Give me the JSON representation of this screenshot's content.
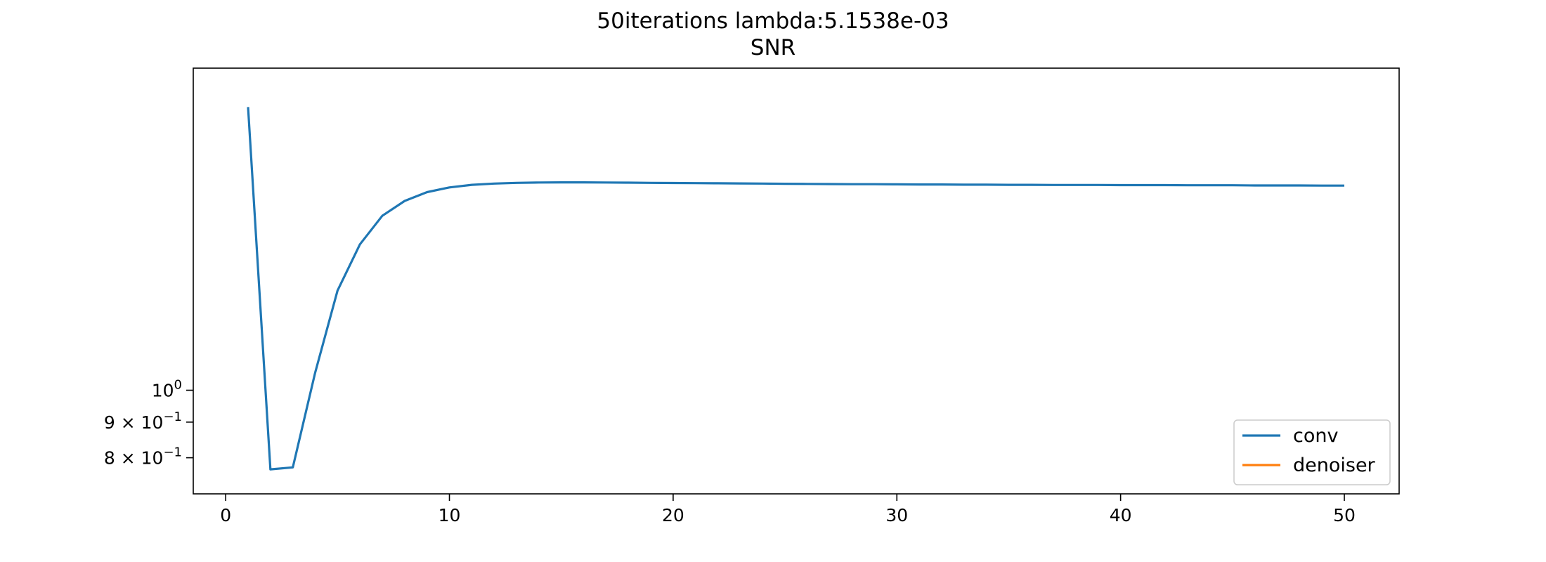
{
  "chart_data": {
    "type": "line",
    "title": "50iterations lambda:5.1538e-03",
    "subtitle": "SNR",
    "xlabel": "",
    "ylabel": "",
    "xlim": [
      -1.45,
      52.45
    ],
    "ylim": [
      0.71,
      2.9
    ],
    "yscale": "log",
    "grid": false,
    "legend_position": "lower-right",
    "x_ticks": [
      {
        "value": 0,
        "label": "0"
      },
      {
        "value": 10,
        "label": "10"
      },
      {
        "value": 20,
        "label": "20"
      },
      {
        "value": 30,
        "label": "30"
      },
      {
        "value": 40,
        "label": "40"
      },
      {
        "value": 50,
        "label": "50"
      }
    ],
    "y_ticks": [
      {
        "value": 1.0,
        "base": "10",
        "exp": "0"
      },
      {
        "value": 0.9,
        "base": "9 × 10",
        "exp": "−1"
      },
      {
        "value": 0.8,
        "base": "8 × 10",
        "exp": "−1"
      }
    ],
    "series": [
      {
        "name": "conv",
        "color": "#1f77b4",
        "x": [
          1,
          2,
          3,
          4,
          5,
          6,
          7,
          8,
          9,
          10,
          11,
          12,
          13,
          14,
          15,
          16,
          17,
          18,
          19,
          20,
          21,
          22,
          23,
          24,
          25,
          26,
          27,
          28,
          29,
          30,
          31,
          32,
          33,
          34,
          35,
          36,
          37,
          38,
          39,
          40,
          41,
          42,
          43,
          44,
          45,
          46,
          47,
          48,
          49,
          50
        ],
        "y": [
          2.55,
          0.77,
          0.775,
          1.06,
          1.39,
          1.62,
          1.78,
          1.87,
          1.925,
          1.955,
          1.972,
          1.98,
          1.985,
          1.987,
          1.988,
          1.988,
          1.987,
          1.986,
          1.985,
          1.984,
          1.983,
          1.982,
          1.981,
          1.98,
          1.979,
          1.978,
          1.977,
          1.976,
          1.976,
          1.975,
          1.974,
          1.974,
          1.973,
          1.973,
          1.972,
          1.972,
          1.971,
          1.971,
          1.971,
          1.97,
          1.97,
          1.97,
          1.969,
          1.969,
          1.969,
          1.968,
          1.968,
          1.968,
          1.967,
          1.967
        ]
      },
      {
        "name": "denoiser",
        "color": "#ff7f0e",
        "x": [],
        "y": []
      }
    ]
  }
}
